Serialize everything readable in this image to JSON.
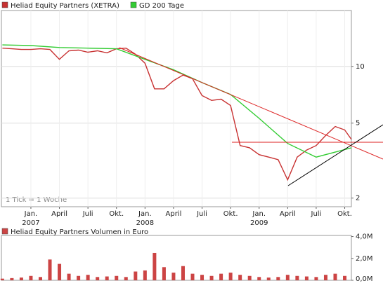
{
  "chart_data": [
    {
      "type": "line",
      "log_scale": true,
      "grid": true,
      "annotation": "1 Tick = 1 Woche",
      "xlim": [
        -3.1,
        33.7
      ],
      "ylim": [
        1.8,
        19.8
      ],
      "yticks": [
        2,
        5,
        10
      ],
      "xticks": [
        {
          "value": 0,
          "label": "Jan."
        },
        {
          "value": 3,
          "label": "April"
        },
        {
          "value": 6,
          "label": "Juli"
        },
        {
          "value": 9,
          "label": "Okt."
        },
        {
          "value": 12,
          "label": "Jan."
        },
        {
          "value": 15,
          "label": "April"
        },
        {
          "value": 18,
          "label": "Juli"
        },
        {
          "value": 21,
          "label": "Okt."
        },
        {
          "value": 24,
          "label": "Jan."
        },
        {
          "value": 27,
          "label": "April"
        },
        {
          "value": 30,
          "label": "Juli"
        },
        {
          "value": 33,
          "label": "Okt."
        }
      ],
      "year_ticks": [
        {
          "value": 0,
          "label": "2007"
        },
        {
          "value": 12,
          "label": "2008"
        },
        {
          "value": 24,
          "label": "2009"
        }
      ],
      "series": [
        {
          "name": "Heliad Equity Partners (XETRA)",
          "color": "#c83232",
          "x": [
            -3,
            -2,
            -1,
            0,
            1,
            2,
            3,
            4,
            5,
            6,
            7,
            8,
            9,
            10,
            11,
            12,
            13,
            14,
            15,
            16,
            17,
            18,
            19,
            20,
            21,
            22,
            23,
            24,
            25,
            26,
            27,
            28,
            29,
            30,
            31,
            32,
            33,
            33.7
          ],
          "values": [
            12.5,
            12.4,
            12.3,
            12.3,
            12.4,
            12.3,
            10.9,
            12.1,
            12.2,
            11.9,
            12.1,
            11.8,
            12.4,
            12.5,
            11.6,
            10.4,
            7.6,
            7.6,
            8.4,
            9.0,
            8.6,
            7.0,
            6.6,
            6.7,
            6.2,
            3.8,
            3.7,
            3.4,
            3.3,
            3.2,
            2.5,
            3.3,
            3.6,
            3.8,
            4.3,
            4.8,
            4.6,
            4.1
          ]
        },
        {
          "name": "GD 200 Tage",
          "color": "#33cc33",
          "x": [
            -3,
            0,
            3,
            6,
            9,
            12,
            15,
            18,
            21,
            24,
            27,
            30,
            33.7
          ],
          "values": [
            13.0,
            12.9,
            12.6,
            12.5,
            12.4,
            10.9,
            9.6,
            8.2,
            7.1,
            5.3,
            3.9,
            3.3,
            3.7
          ]
        }
      ]
    },
    {
      "type": "bar",
      "title": "Heliad Equity Partners Volumen in Euro",
      "color": "#cc4444",
      "xlim": [
        -3.1,
        33.7
      ],
      "ylim": [
        0,
        4100000
      ],
      "yticks": [
        {
          "value": 0,
          "label": "0,0M"
        },
        {
          "value": 2000000,
          "label": "2,0M"
        },
        {
          "value": 4000000,
          "label": "4,0M"
        }
      ],
      "x": [
        -3,
        -2,
        -1,
        0,
        1,
        2,
        3,
        4,
        5,
        6,
        7,
        8,
        9,
        10,
        11,
        12,
        13,
        14,
        15,
        16,
        17,
        18,
        19,
        20,
        21,
        22,
        23,
        24,
        25,
        26,
        27,
        28,
        29,
        30,
        31,
        32,
        33
      ],
      "values": [
        150000,
        200000,
        250000,
        400000,
        300000,
        1900000,
        1500000,
        600000,
        400000,
        500000,
        300000,
        350000,
        400000,
        300000,
        800000,
        900000,
        2500000,
        1200000,
        700000,
        1300000,
        600000,
        500000,
        400000,
        600000,
        700000,
        500000,
        400000,
        300000,
        250000,
        300000,
        500000,
        400000,
        350000,
        300000,
        500000,
        600000,
        400000
      ]
    }
  ]
}
